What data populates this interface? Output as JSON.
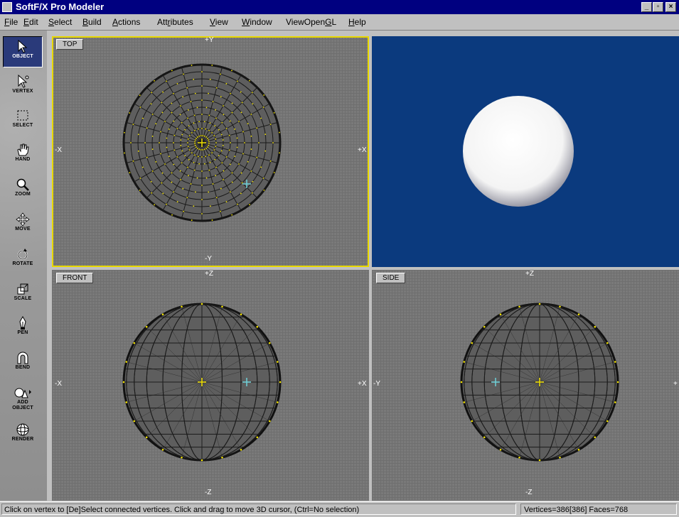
{
  "window": {
    "title": "SoftF/X Pro Modeler"
  },
  "menu": [
    {
      "label": "File",
      "key": "F",
      "rest": "ile"
    },
    {
      "label": "Edit",
      "key": "E",
      "rest": "dit"
    },
    {
      "label": "Select",
      "key": "S",
      "rest": "elect"
    },
    {
      "label": "Build",
      "key": "B",
      "rest": "uild"
    },
    {
      "label": "Actions",
      "key": "A",
      "rest": "ctions"
    },
    {
      "label": "Attributes",
      "pre": "Att",
      "key": "r",
      "rest": "ibutes"
    },
    {
      "label": "View",
      "key": "V",
      "rest": "iew"
    },
    {
      "label": "Window",
      "key": "W",
      "rest": "indow"
    },
    {
      "label": "ViewOpenGL",
      "pre": "ViewOpen",
      "key": "G",
      "rest": "L"
    },
    {
      "label": "Help",
      "key": "H",
      "rest": "elp"
    }
  ],
  "tools": [
    {
      "label": "OBJECT",
      "icon": "cursor-arrow-icon",
      "active": true
    },
    {
      "label": "VERTEX",
      "icon": "vertex-arrow-icon"
    },
    {
      "label": "SELECT",
      "icon": "marquee-select-icon"
    },
    {
      "label": "HAND",
      "icon": "hand-icon"
    },
    {
      "label": "ZOOM",
      "icon": "magnifier-icon"
    },
    {
      "label": "MOVE",
      "icon": "move-arrows-icon"
    },
    {
      "label": "ROTATE",
      "icon": "rotate-icon"
    },
    {
      "label": "SCALE",
      "icon": "scale-icon"
    },
    {
      "label": "PEN",
      "icon": "pen-nib-icon"
    },
    {
      "label": "BEND",
      "icon": "magnet-bend-icon"
    },
    {
      "label1": "ADD",
      "label2": "OBJECT",
      "icon": "add-shapes-icon"
    },
    {
      "label": "RENDER",
      "icon": "render-sphere-icon"
    }
  ],
  "viewports": {
    "top": {
      "label": "TOP",
      "axis_top": "+Y",
      "axis_bottom": "-Y",
      "axis_left": "-X",
      "axis_right": "+X"
    },
    "front": {
      "label": "FRONT",
      "axis_top": "+Z",
      "axis_bottom": "-Z",
      "axis_left": "-X",
      "axis_right": "+X"
    },
    "side": {
      "label": "SIDE",
      "axis_top": "+Z",
      "axis_bottom": "-Z",
      "axis_left": "-Y",
      "axis_right": "+"
    }
  },
  "colors": {
    "render_bg": "#0b3a7e",
    "selection": "#e8d800",
    "vertex": "#f0e000"
  },
  "status": {
    "message": "Click on vertex to [De]Select connected vertices. Click and drag to move 3D cursor, (Ctrl=No selection)",
    "counts": "Vertices=386[386] Faces=768"
  }
}
